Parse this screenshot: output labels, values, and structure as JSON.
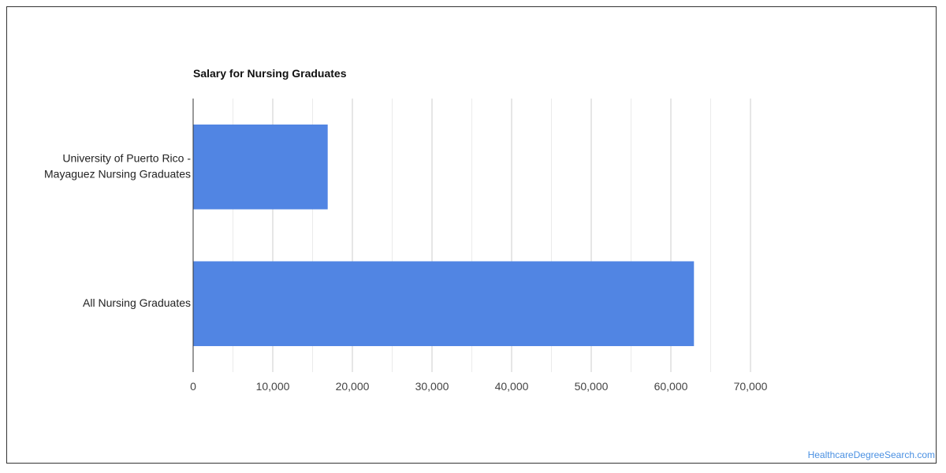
{
  "chart_data": {
    "type": "bar",
    "orientation": "horizontal",
    "title": "Salary for Nursing Graduates",
    "categories": [
      [
        "University of Puerto Rico -",
        "Mayaguez Nursing Graduates"
      ],
      [
        "All Nursing Graduates"
      ]
    ],
    "values": [
      16900,
      62900
    ],
    "xlim": [
      0,
      70000
    ],
    "xticks": [
      0,
      10000,
      20000,
      30000,
      40000,
      50000,
      60000,
      70000
    ],
    "xtick_labels": [
      "0",
      "10,000",
      "20,000",
      "30,000",
      "40,000",
      "50,000",
      "60,000",
      "70,000"
    ],
    "grid": true,
    "bar_color": "#5185e3"
  },
  "watermark": "HealthcareDegreeSearch.com"
}
